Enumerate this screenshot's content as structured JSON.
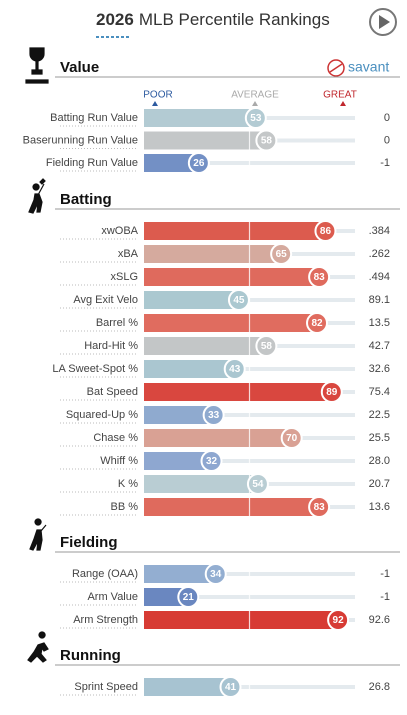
{
  "header": {
    "year": "2026",
    "title": "MLB Percentile Rankings",
    "brand": "savant"
  },
  "scale": {
    "poor": "POOR",
    "average": "AVERAGE",
    "great": "GREAT"
  },
  "sections": [
    {
      "title": "Value",
      "rows": [
        {
          "label": "Batting Run Value",
          "percentile": 53,
          "value": "0",
          "color": "#b3cbd3"
        },
        {
          "label": "Baserunning Run Value",
          "percentile": 58,
          "value": "0",
          "color": "#c4c7c8"
        },
        {
          "label": "Fielding Run Value",
          "percentile": 26,
          "value": "-1",
          "color": "#7390c5"
        }
      ]
    },
    {
      "title": "Batting",
      "rows": [
        {
          "label": "xwOBA",
          "percentile": 86,
          "value": ".384",
          "color": "#dc5b4e"
        },
        {
          "label": "xBA",
          "percentile": 65,
          "value": ".262",
          "color": "#d5aa9e"
        },
        {
          "label": "xSLG",
          "percentile": 83,
          "value": ".494",
          "color": "#df6a5d"
        },
        {
          "label": "Avg Exit Velo",
          "percentile": 45,
          "value": "89.1",
          "color": "#abc8d0"
        },
        {
          "label": "Barrel %",
          "percentile": 82,
          "value": "13.5",
          "color": "#e06c5f"
        },
        {
          "label": "Hard-Hit %",
          "percentile": 58,
          "value": "42.7",
          "color": "#c3c6c7"
        },
        {
          "label": "LA Sweet-Spot %",
          "percentile": 43,
          "value": "32.6",
          "color": "#aac6d0"
        },
        {
          "label": "Bat Speed",
          "percentile": 89,
          "value": "75.4",
          "color": "#d9473f"
        },
        {
          "label": "Squared-Up %",
          "percentile": 33,
          "value": "22.5",
          "color": "#8faacf"
        },
        {
          "label": "Chase %",
          "percentile": 70,
          "value": "25.5",
          "color": "#d9a194"
        },
        {
          "label": "Whiff %",
          "percentile": 32,
          "value": "28.0",
          "color": "#8ea7d0"
        },
        {
          "label": "K %",
          "percentile": 54,
          "value": "20.7",
          "color": "#b9cdd3"
        },
        {
          "label": "BB %",
          "percentile": 83,
          "value": "13.6",
          "color": "#df6a5d"
        }
      ]
    },
    {
      "title": "Fielding",
      "rows": [
        {
          "label": "Range (OAA)",
          "percentile": 34,
          "value": "-1",
          "color": "#93aed1"
        },
        {
          "label": "Arm Value",
          "percentile": 21,
          "value": "-1",
          "color": "#6a87c0"
        },
        {
          "label": "Arm Strength",
          "percentile": 92,
          "value": "92.6",
          "color": "#d73b34"
        }
      ]
    },
    {
      "title": "Running",
      "rows": [
        {
          "label": "Sprint Speed",
          "percentile": 41,
          "value": "26.8",
          "color": "#a7c3d1"
        }
      ]
    }
  ]
}
